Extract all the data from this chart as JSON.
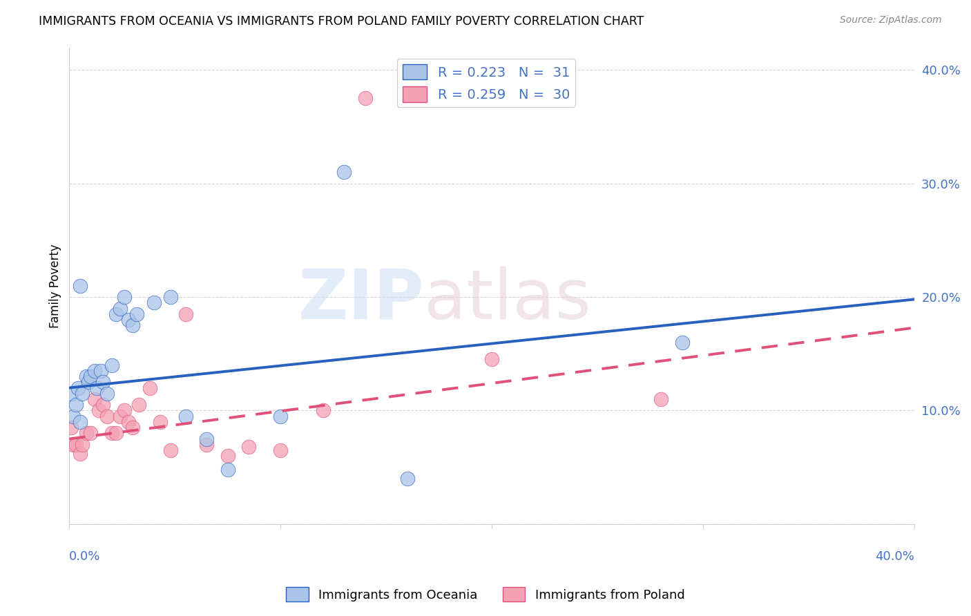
{
  "title": "IMMIGRANTS FROM OCEANIA VS IMMIGRANTS FROM POLAND FAMILY POVERTY CORRELATION CHART",
  "source": "Source: ZipAtlas.com",
  "ylabel": "Family Poverty",
  "x_range": [
    0.0,
    0.4
  ],
  "y_range": [
    0.0,
    0.42
  ],
  "legend_oceania": "R = 0.223   N =  31",
  "legend_poland": "R = 0.259   N =  30",
  "color_oceania": "#aac4e8",
  "color_poland": "#f4a0b5",
  "line_color_oceania": "#2860c0",
  "line_color_poland": "#e0507a",
  "oceania_slope": 0.195,
  "oceania_intercept": 0.12,
  "poland_slope": 0.245,
  "poland_intercept": 0.075,
  "tick_color": "#4472c4",
  "grid_color": "#cccccc",
  "oceania_scatter_x": [
    0.001,
    0.002,
    0.003,
    0.004,
    0.005,
    0.006,
    0.008,
    0.009,
    0.01,
    0.012,
    0.013,
    0.015,
    0.016,
    0.018,
    0.02,
    0.022,
    0.024,
    0.026,
    0.028,
    0.03,
    0.032,
    0.04,
    0.048,
    0.055,
    0.065,
    0.075,
    0.1,
    0.13,
    0.16,
    0.29,
    0.005
  ],
  "oceania_scatter_y": [
    0.115,
    0.095,
    0.105,
    0.12,
    0.09,
    0.115,
    0.13,
    0.125,
    0.13,
    0.135,
    0.12,
    0.135,
    0.125,
    0.115,
    0.14,
    0.185,
    0.19,
    0.2,
    0.18,
    0.175,
    0.185,
    0.195,
    0.2,
    0.095,
    0.075,
    0.048,
    0.095,
    0.31,
    0.04,
    0.16,
    0.21
  ],
  "poland_scatter_x": [
    0.001,
    0.002,
    0.003,
    0.005,
    0.006,
    0.008,
    0.01,
    0.012,
    0.014,
    0.016,
    0.018,
    0.02,
    0.022,
    0.024,
    0.026,
    0.028,
    0.03,
    0.033,
    0.038,
    0.043,
    0.048,
    0.055,
    0.065,
    0.075,
    0.085,
    0.1,
    0.12,
    0.14,
    0.2,
    0.28
  ],
  "poland_scatter_y": [
    0.085,
    0.07,
    0.07,
    0.062,
    0.07,
    0.08,
    0.08,
    0.11,
    0.1,
    0.105,
    0.095,
    0.08,
    0.08,
    0.095,
    0.1,
    0.09,
    0.085,
    0.105,
    0.12,
    0.09,
    0.065,
    0.185,
    0.07,
    0.06,
    0.068,
    0.065,
    0.1,
    0.375,
    0.145,
    0.11
  ]
}
